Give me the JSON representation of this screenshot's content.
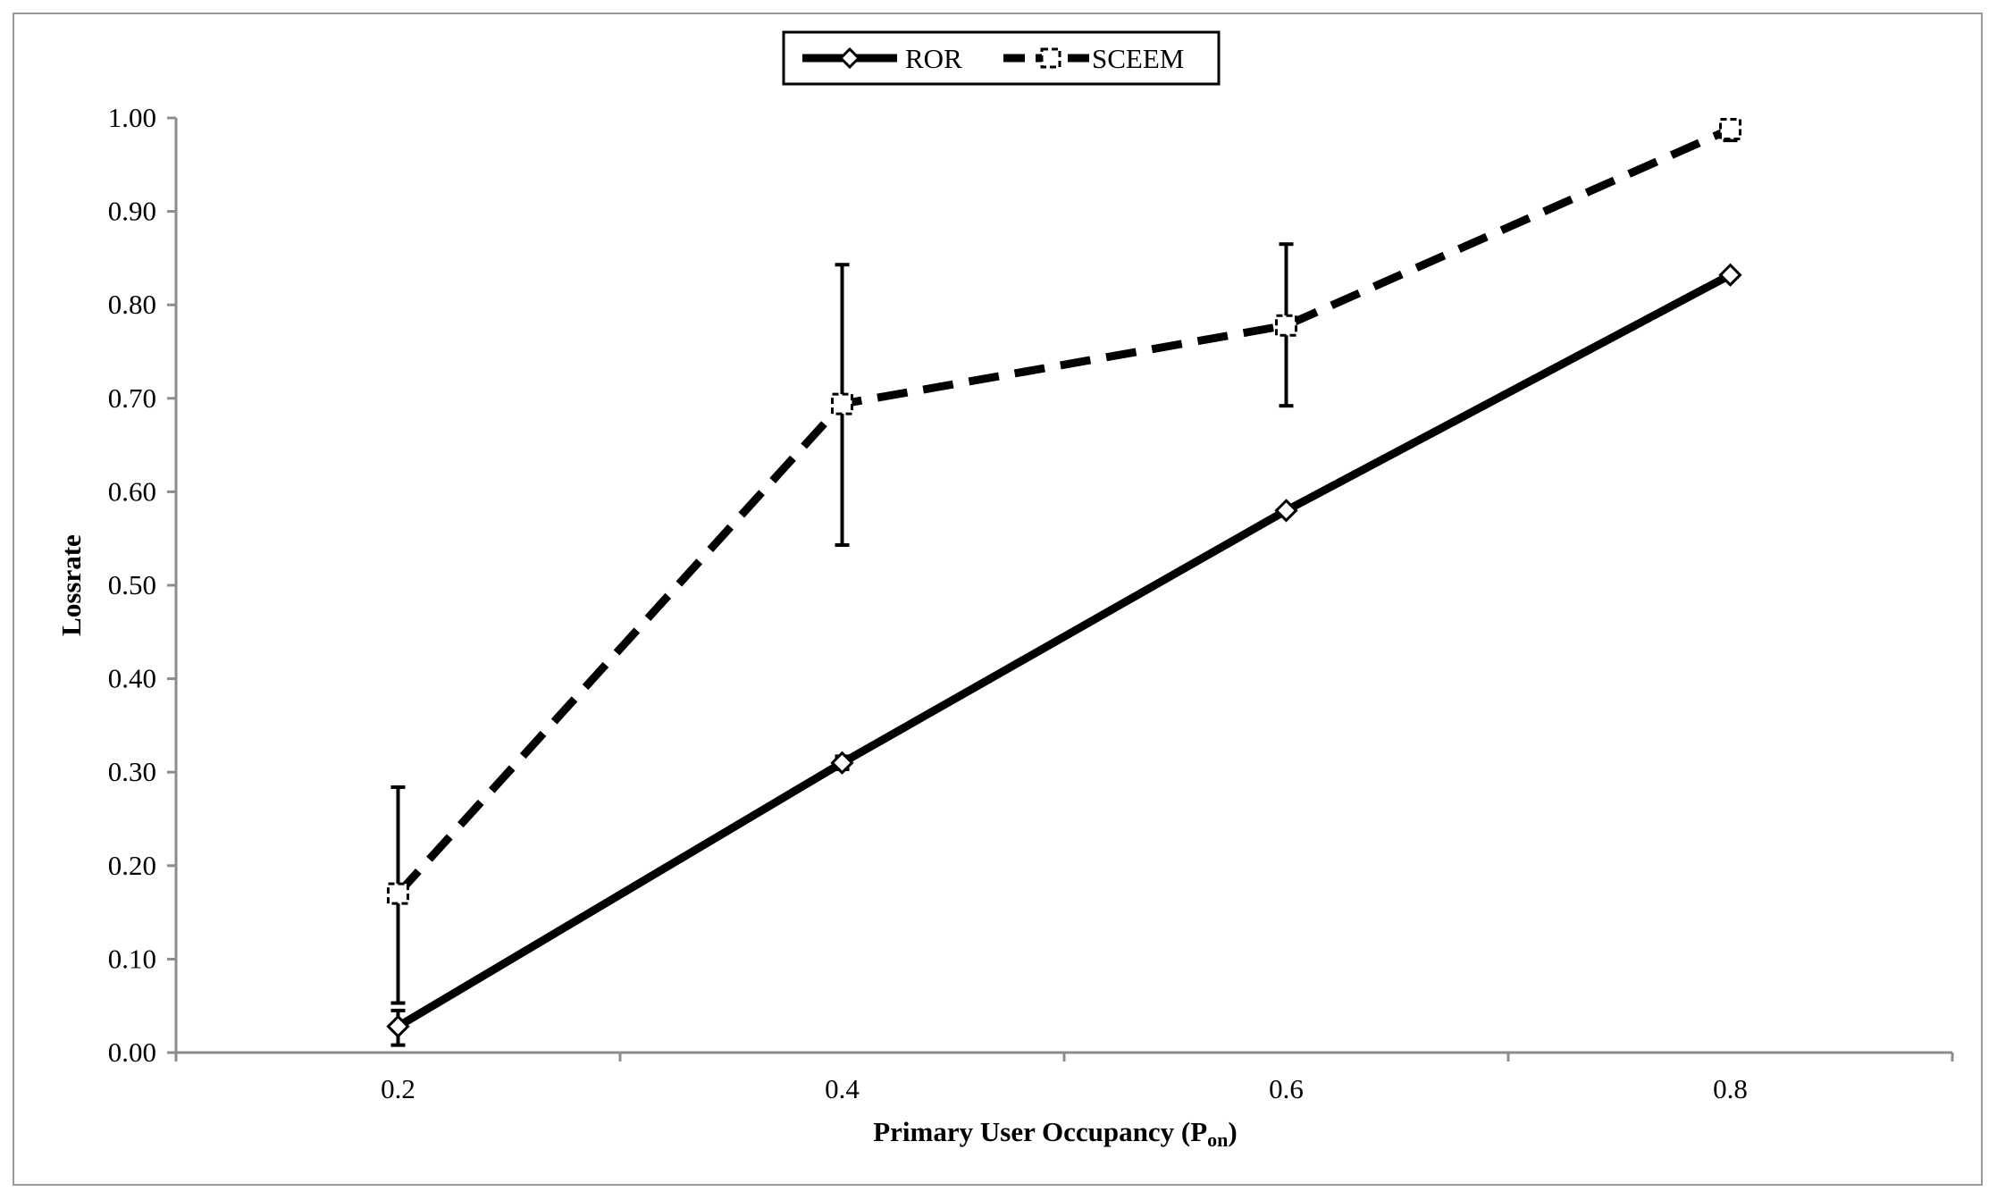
{
  "chart_data": {
    "type": "line",
    "x": [
      "0.2",
      "0.4",
      "0.6",
      "0.8"
    ],
    "x_values": [
      0.2,
      0.4,
      0.6,
      0.8
    ],
    "xlim": [
      0.1,
      0.9
    ],
    "ylim": [
      0,
      1
    ],
    "y_ticks": [
      "0.00",
      "0.10",
      "0.20",
      "0.30",
      "0.40",
      "0.50",
      "0.60",
      "0.70",
      "0.80",
      "0.90",
      "1.00"
    ],
    "xlabel": "Primary User Occupancy  (P",
    "xlabel_sub": "on",
    "xlabel_close": ")",
    "ylabel": "Lossrate",
    "grid": false,
    "legend_position": "top-center",
    "series": [
      {
        "name": "ROR",
        "style": "solid",
        "marker": "diamond",
        "color": "#000000",
        "values": [
          0.028,
          0.31,
          0.58,
          0.832
        ],
        "error_low": [
          0.008,
          0.303,
          0.58,
          0.832
        ],
        "error_high": [
          0.045,
          0.317,
          0.58,
          0.832
        ]
      },
      {
        "name": "SCEEM",
        "style": "dashed",
        "marker": "square",
        "color": "#000000",
        "values": [
          0.17,
          0.694,
          0.778,
          0.988
        ],
        "error_low": [
          0.053,
          0.543,
          0.692,
          0.976
        ],
        "error_high": [
          0.284,
          0.843,
          0.865,
          0.988
        ]
      }
    ]
  }
}
